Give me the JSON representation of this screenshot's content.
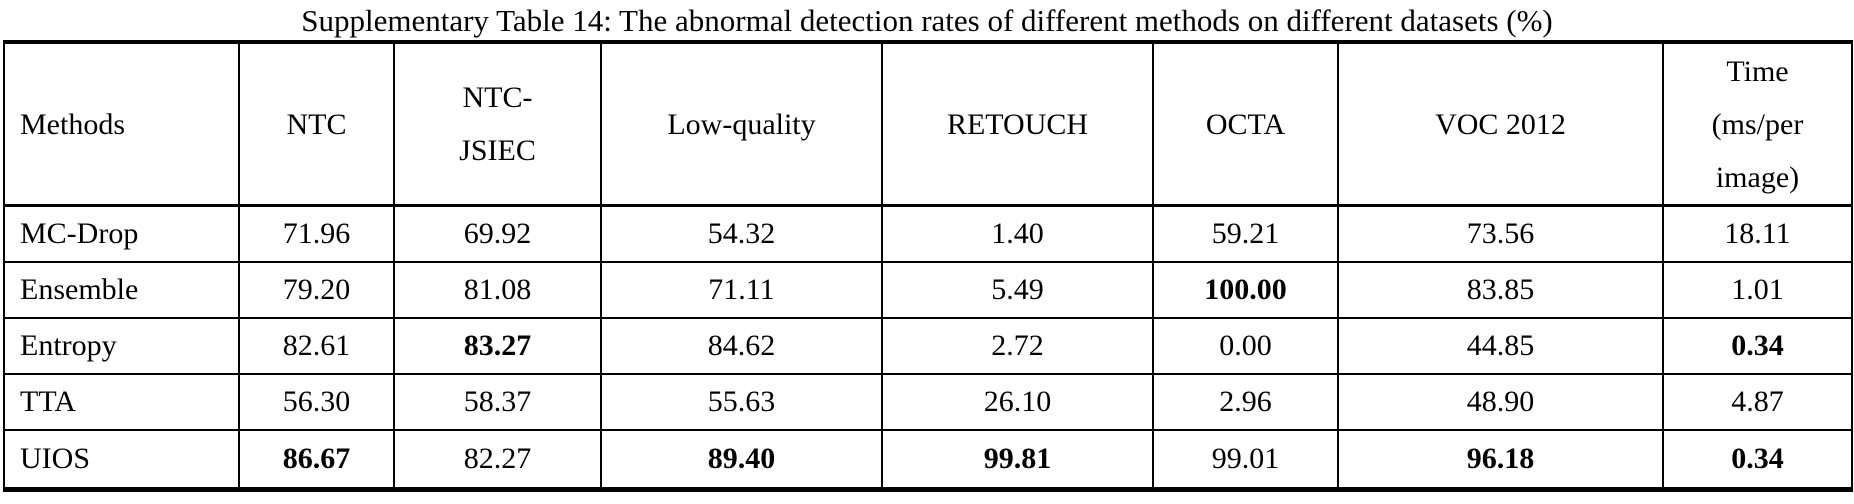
{
  "title": "Supplementary Table 14: The abnormal detection rates of different methods on different datasets (%)",
  "table": {
    "headers": [
      "Methods",
      "NTC",
      "NTC-\nJSIEC",
      "Low-quality",
      "RETOUCH",
      "OCTA",
      "VOC 2012",
      "Time\n(ms/per\nimage)"
    ],
    "rows": [
      {
        "cells": [
          {
            "text": "MC-Drop",
            "bold": false
          },
          {
            "text": "71.96",
            "bold": false
          },
          {
            "text": "69.92",
            "bold": false
          },
          {
            "text": "54.32",
            "bold": false
          },
          {
            "text": "1.40",
            "bold": false
          },
          {
            "text": "59.21",
            "bold": false
          },
          {
            "text": "73.56",
            "bold": false
          },
          {
            "text": "18.11",
            "bold": false
          }
        ]
      },
      {
        "cells": [
          {
            "text": "Ensemble",
            "bold": false
          },
          {
            "text": "79.20",
            "bold": false
          },
          {
            "text": "81.08",
            "bold": false
          },
          {
            "text": "71.11",
            "bold": false
          },
          {
            "text": "5.49",
            "bold": false
          },
          {
            "text": "100.00",
            "bold": true
          },
          {
            "text": "83.85",
            "bold": false
          },
          {
            "text": "1.01",
            "bold": false
          }
        ]
      },
      {
        "cells": [
          {
            "text": "Entropy",
            "bold": false
          },
          {
            "text": "82.61",
            "bold": false
          },
          {
            "text": "83.27",
            "bold": true
          },
          {
            "text": "84.62",
            "bold": false
          },
          {
            "text": "2.72",
            "bold": false
          },
          {
            "text": "0.00",
            "bold": false
          },
          {
            "text": "44.85",
            "bold": false
          },
          {
            "text": "0.34",
            "bold": true
          }
        ]
      },
      {
        "cells": [
          {
            "text": "TTA",
            "bold": false
          },
          {
            "text": "56.30",
            "bold": false
          },
          {
            "text": "58.37",
            "bold": false
          },
          {
            "text": "55.63",
            "bold": false
          },
          {
            "text": "26.10",
            "bold": false
          },
          {
            "text": "2.96",
            "bold": false
          },
          {
            "text": "48.90",
            "bold": false
          },
          {
            "text": "4.87",
            "bold": false
          }
        ]
      },
      {
        "cells": [
          {
            "text": "UIOS",
            "bold": false
          },
          {
            "text": "86.67",
            "bold": true
          },
          {
            "text": "82.27",
            "bold": false
          },
          {
            "text": "89.40",
            "bold": true
          },
          {
            "text": "99.81",
            "bold": true
          },
          {
            "text": "99.01",
            "bold": false
          },
          {
            "text": "96.18",
            "bold": true
          },
          {
            "text": "0.34",
            "bold": true
          }
        ]
      }
    ]
  }
}
